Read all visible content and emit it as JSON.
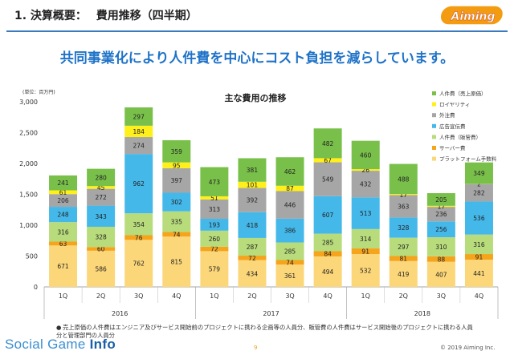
{
  "header": {
    "title": "1. 決算概要：　 費用推移（四半期）",
    "logo_text": "Aiming"
  },
  "headline": "共同事業化により人件費を中心にコスト負担を減らしています。",
  "footnote": "売上原価の人件費はエンジニア及びサービス開始前のプロジェクトに携わる企画等の人員分、販管費の人件費はサービス開始後のプロジェクトに携わる人員分と管理部門の人員分",
  "footer": {
    "brand_prefix": "Social Game ",
    "brand_suffix": "Info",
    "page": "9",
    "copyright": "© 2019 Aiming Inc."
  },
  "colors": {
    "platform": "#fcd77a",
    "server": "#f5a41c",
    "hr_sga": "#b8dc7c",
    "ad": "#45b8ea",
    "outsourcing": "#a6a6a6",
    "royalty": "#ffef1a",
    "hr_cost": "#79c04a"
  },
  "chart_data": {
    "type": "bar",
    "stacked": true,
    "title": "主な費用の推移",
    "unit_label": "(単位：百万円)",
    "ylim": [
      0,
      3000
    ],
    "yticks": [
      "0",
      "500",
      "1,000",
      "1,500",
      "2,000",
      "2,500",
      "3,000"
    ],
    "categories": [
      "1Q",
      "2Q",
      "3Q",
      "4Q",
      "1Q",
      "2Q",
      "3Q",
      "4Q",
      "1Q",
      "2Q",
      "3Q",
      "4Q"
    ],
    "years": [
      {
        "label": "2016",
        "span": 4
      },
      {
        "label": "2017",
        "span": 4
      },
      {
        "label": "2018",
        "span": 4
      }
    ],
    "legend_position": "top-right",
    "series": [
      {
        "name": "プラットフォーム手数料",
        "color": "#fcd77a",
        "values": [
          671,
          586,
          762,
          815,
          579,
          434,
          361,
          494,
          532,
          419,
          407,
          441
        ]
      },
      {
        "name": "サーバー費",
        "color": "#f5a41c",
        "values": [
          63,
          60,
          76,
          74,
          72,
          72,
          74,
          84,
          91,
          81,
          88,
          91
        ]
      },
      {
        "name": "人件費（販管費）",
        "color": "#b8dc7c",
        "values": [
          316,
          328,
          354,
          335,
          260,
          287,
          285,
          285,
          314,
          297,
          310,
          316
        ]
      },
      {
        "name": "広告宣伝費",
        "color": "#45b8ea",
        "values": [
          248,
          343,
          962,
          302,
          193,
          418,
          386,
          607,
          513,
          328,
          256,
          536
        ]
      },
      {
        "name": "外注費",
        "color": "#a6a6a6",
        "values": [
          206,
          272,
          274,
          397,
          313,
          392,
          446,
          549,
          432,
          363,
          236,
          282
        ]
      },
      {
        "name": "ロイヤリティ",
        "color": "#ffef1a",
        "values": [
          61,
          45,
          184,
          95,
          51,
          101,
          87,
          67,
          26,
          17,
          17,
          2
        ]
      },
      {
        "name": "人件費（売上原価）",
        "color": "#79c04a",
        "values": [
          241,
          280,
          297,
          359,
          473,
          381,
          462,
          482,
          460,
          488,
          205,
          349
        ]
      }
    ],
    "legend_order": [
      "人件費（売上原価）",
      "ロイヤリティ",
      "外注費",
      "広告宣伝費",
      "人件費（販管費）",
      "サーバー費",
      "プラットフォーム手数料"
    ]
  }
}
